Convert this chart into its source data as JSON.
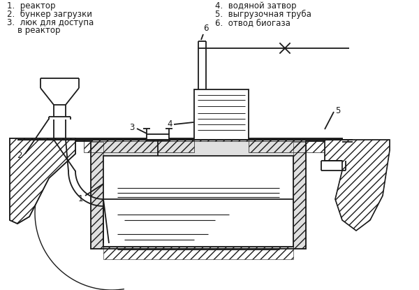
{
  "bg_color": "#ffffff",
  "lc": "#1a1a1a",
  "lw": 1.3,
  "labels_left_1": "1.  реактор",
  "labels_left_2": "2.  бункер загрузки",
  "labels_left_3": "3.  люк для доступа",
  "labels_left_4": "    в реактор",
  "labels_right_4": "4.  водяной затвор",
  "labels_right_5": "5.  выгрузочная труба",
  "labels_right_6": "6.  отвод биогаза"
}
